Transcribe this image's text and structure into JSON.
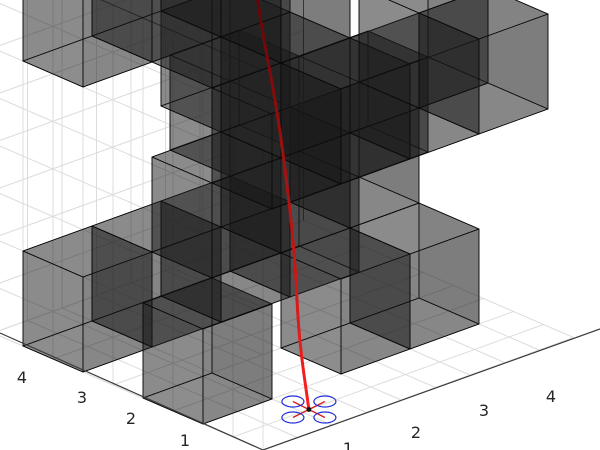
{
  "chart_data": {
    "type": "3d-obstacle-scene",
    "title": "",
    "xlabel": "",
    "ylabel": "",
    "zlabel": "",
    "x_ticks": [
      "1",
      "2",
      "3",
      "4"
    ],
    "y_ticks": [
      "1",
      "2",
      "3",
      "4"
    ],
    "xlim": [
      0.5,
      5
    ],
    "ylim": [
      0.5,
      5
    ],
    "zlim": [
      0,
      4
    ],
    "grid": true,
    "obstacle_color": "#1a1a1a",
    "obstacle_opacity": 0.62,
    "obstacles": [
      {
        "x": 1,
        "y": 4,
        "z": 0
      },
      {
        "x": 2,
        "y": 4,
        "z": 0
      },
      {
        "x": 1,
        "y": 2,
        "z": 0
      },
      {
        "x": 3,
        "y": 2,
        "z": 0
      },
      {
        "x": 4,
        "y": 2,
        "z": 0
      },
      {
        "x": 3,
        "y": 4,
        "z": 0
      },
      {
        "x": 4,
        "y": 4,
        "z": 0
      },
      {
        "x": 2,
        "y": 3,
        "z": 1
      },
      {
        "x": 3,
        "y": 3,
        "z": 1
      },
      {
        "x": 4,
        "y": 3,
        "z": 1
      },
      {
        "x": 4,
        "y": 5,
        "z": 1
      },
      {
        "x": 5,
        "y": 4,
        "z": 1
      },
      {
        "x": 4,
        "y": 2,
        "z": 2
      },
      {
        "x": 3,
        "y": 2,
        "z": 2
      },
      {
        "x": 2,
        "y": 2,
        "z": 2
      },
      {
        "x": 3,
        "y": 3,
        "z": 2
      },
      {
        "x": 3,
        "y": 4,
        "z": 2
      },
      {
        "x": 5,
        "y": 3,
        "z": 2
      },
      {
        "x": 5,
        "y": 2,
        "z": 2
      },
      {
        "x": 1,
        "y": 4,
        "z": 3
      },
      {
        "x": 2,
        "y": 4,
        "z": 3
      },
      {
        "x": 3,
        "y": 4,
        "z": 3
      },
      {
        "x": 2,
        "y": 3,
        "z": 3
      },
      {
        "x": 3,
        "y": 3,
        "z": 3
      },
      {
        "x": 4,
        "y": 5,
        "z": 3
      },
      {
        "x": 5,
        "y": 4,
        "z": 3
      },
      {
        "x": 5,
        "y": 5,
        "z": 3
      }
    ],
    "path": {
      "color_start": "#ff2020",
      "color_end": "#3a0000",
      "points": [
        [
          1.6,
          1.0,
          0.0
        ],
        [
          1.8,
          1.4,
          0.6
        ],
        [
          2.1,
          1.8,
          1.2
        ],
        [
          2.4,
          2.3,
          1.9
        ],
        [
          2.6,
          2.7,
          2.5
        ],
        [
          2.9,
          3.3,
          3.1
        ],
        [
          3.2,
          3.8,
          3.6
        ],
        [
          3.5,
          4.2,
          4.0
        ]
      ]
    },
    "vehicle": {
      "x": 1.6,
      "y": 1.0,
      "z": 0.0,
      "rotor_color": "#1f2fd6",
      "arm_color": "#d62020",
      "hub_color": "#101010"
    }
  }
}
